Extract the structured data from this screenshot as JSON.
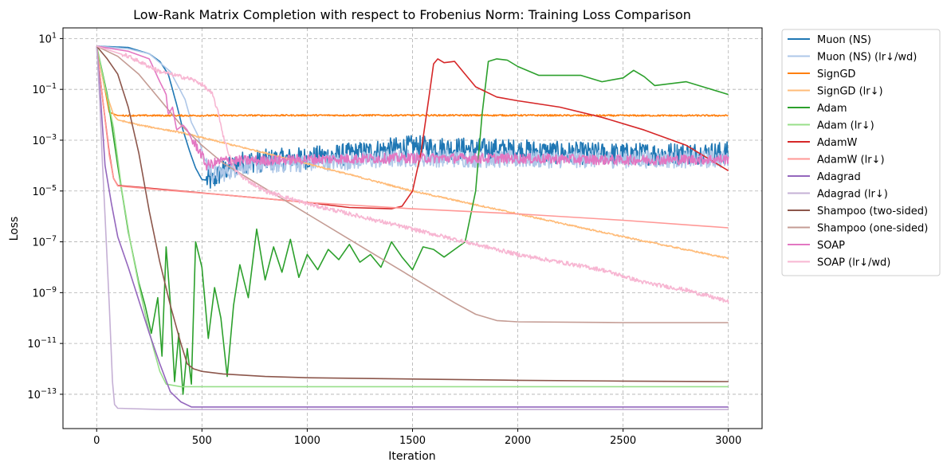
{
  "chart_data": {
    "type": "line",
    "title": "Low-Rank Matrix Completion with respect to Frobenius Norm: Training Loss Comparison",
    "xlabel": "Iteration",
    "ylabel": "Loss",
    "xlim": [
      -160,
      3160
    ],
    "ylim_log10": [
      -14.35,
      1.42
    ],
    "yscale": "log",
    "xticks": [
      0,
      500,
      1000,
      1500,
      2000,
      2500,
      3000
    ],
    "xtick_labels": [
      "0",
      "500",
      "1000",
      "1500",
      "2000",
      "2500",
      "3000"
    ],
    "yticks_exp": [
      1,
      -1,
      -3,
      -5,
      -7,
      -9,
      -11,
      -13
    ],
    "grid": true,
    "legend_position": "outside-right",
    "series": [
      {
        "name": "Muon (NS)",
        "color": "#1f77b4",
        "noise": 0.45,
        "points": [
          [
            0,
            0.7
          ],
          [
            150,
            0.65
          ],
          [
            250,
            0.4
          ],
          [
            300,
            0.1
          ],
          [
            340,
            -0.4
          ],
          [
            380,
            -1.6
          ],
          [
            410,
            -2.6
          ],
          [
            440,
            -3.4
          ],
          [
            470,
            -4.1
          ],
          [
            500,
            -4.55
          ],
          [
            550,
            -4.6
          ],
          [
            600,
            -4.2
          ],
          [
            700,
            -3.85
          ],
          [
            800,
            -3.8
          ],
          [
            1000,
            -3.7
          ],
          [
            1200,
            -3.55
          ],
          [
            1400,
            -3.35
          ],
          [
            1500,
            -3.25
          ],
          [
            1600,
            -3.3
          ],
          [
            1800,
            -3.35
          ],
          [
            2000,
            -3.4
          ],
          [
            2200,
            -3.5
          ],
          [
            2500,
            -3.55
          ],
          [
            3000,
            -3.5
          ]
        ]
      },
      {
        "name": "Muon (NS) (lr↓/wd)",
        "color": "#aec7e8",
        "noise": 0.35,
        "points": [
          [
            0,
            0.7
          ],
          [
            150,
            0.6
          ],
          [
            250,
            0.4
          ],
          [
            350,
            -0.3
          ],
          [
            420,
            -1.4
          ],
          [
            450,
            -2.3
          ],
          [
            480,
            -2.8
          ],
          [
            510,
            -3.7
          ],
          [
            550,
            -4.35
          ],
          [
            600,
            -4.3
          ],
          [
            700,
            -4.0
          ],
          [
            1000,
            -3.9
          ],
          [
            1500,
            -3.7
          ],
          [
            2000,
            -3.75
          ],
          [
            2500,
            -3.75
          ],
          [
            3000,
            -3.75
          ]
        ]
      },
      {
        "name": "SignGD",
        "color": "#ff7f0e",
        "noise": 0.03,
        "points": [
          [
            0,
            0.7
          ],
          [
            30,
            -0.6
          ],
          [
            60,
            -1.9
          ],
          [
            100,
            -2.03
          ],
          [
            500,
            -2.03
          ],
          [
            1000,
            -2.02
          ],
          [
            1500,
            -2.02
          ],
          [
            2000,
            -2.02
          ],
          [
            2500,
            -2.03
          ],
          [
            3000,
            -2.03
          ]
        ]
      },
      {
        "name": "SignGD (lr↓)",
        "color": "#ffbb78",
        "noise": 0.03,
        "points": [
          [
            0,
            0.7
          ],
          [
            40,
            -1.0
          ],
          [
            80,
            -2.0
          ],
          [
            100,
            -2.2
          ],
          [
            200,
            -2.4
          ],
          [
            400,
            -2.7
          ],
          [
            800,
            -3.5
          ],
          [
            1200,
            -4.35
          ],
          [
            1500,
            -5.0
          ],
          [
            2000,
            -5.9
          ],
          [
            2500,
            -6.8
          ],
          [
            3000,
            -7.65
          ]
        ]
      },
      {
        "name": "Adam",
        "color": "#2ca02c",
        "noise": 0.0,
        "points": [
          [
            0,
            0.7
          ],
          [
            50,
            -1.2
          ],
          [
            100,
            -4.0
          ],
          [
            150,
            -6.6
          ],
          [
            200,
            -8.6
          ],
          [
            230,
            -9.5
          ],
          [
            260,
            -10.6
          ],
          [
            290,
            -9.2
          ],
          [
            310,
            -11.5
          ],
          [
            330,
            -7.2
          ],
          [
            350,
            -9.4
          ],
          [
            370,
            -12.5
          ],
          [
            390,
            -10.6
          ],
          [
            410,
            -13.0
          ],
          [
            430,
            -11.2
          ],
          [
            450,
            -12.6
          ],
          [
            470,
            -7.0
          ],
          [
            500,
            -8.0
          ],
          [
            530,
            -10.8
          ],
          [
            560,
            -8.8
          ],
          [
            590,
            -10.0
          ],
          [
            620,
            -12.3
          ],
          [
            650,
            -9.5
          ],
          [
            680,
            -7.9
          ],
          [
            720,
            -9.2
          ],
          [
            760,
            -6.5
          ],
          [
            800,
            -8.5
          ],
          [
            840,
            -7.2
          ],
          [
            880,
            -8.2
          ],
          [
            920,
            -6.9
          ],
          [
            960,
            -8.4
          ],
          [
            1000,
            -7.5
          ],
          [
            1050,
            -8.1
          ],
          [
            1100,
            -7.3
          ],
          [
            1150,
            -7.7
          ],
          [
            1200,
            -7.1
          ],
          [
            1250,
            -7.8
          ],
          [
            1300,
            -7.5
          ],
          [
            1350,
            -8.0
          ],
          [
            1400,
            -7.0
          ],
          [
            1450,
            -7.6
          ],
          [
            1500,
            -8.1
          ],
          [
            1550,
            -7.2
          ],
          [
            1600,
            -7.3
          ],
          [
            1650,
            -7.6
          ],
          [
            1700,
            -7.3
          ],
          [
            1750,
            -7.0
          ],
          [
            1800,
            -5.0
          ],
          [
            1830,
            -2.0
          ],
          [
            1860,
            0.1
          ],
          [
            1900,
            0.2
          ],
          [
            1950,
            0.15
          ],
          [
            2000,
            -0.1
          ],
          [
            2100,
            -0.45
          ],
          [
            2200,
            -0.45
          ],
          [
            2300,
            -0.45
          ],
          [
            2400,
            -0.7
          ],
          [
            2500,
            -0.55
          ],
          [
            2550,
            -0.25
          ],
          [
            2600,
            -0.5
          ],
          [
            2650,
            -0.85
          ],
          [
            2700,
            -0.8
          ],
          [
            2800,
            -0.7
          ],
          [
            2900,
            -0.95
          ],
          [
            3000,
            -1.2
          ]
        ]
      },
      {
        "name": "Adam (lr↓)",
        "color": "#98df8a",
        "noise": 0.0,
        "points": [
          [
            0,
            0.7
          ],
          [
            80,
            -2.5
          ],
          [
            120,
            -5.0
          ],
          [
            160,
            -7.0
          ],
          [
            200,
            -8.7
          ],
          [
            240,
            -10.2
          ],
          [
            270,
            -11.2
          ],
          [
            300,
            -12.1
          ],
          [
            330,
            -12.6
          ],
          [
            400,
            -12.7
          ],
          [
            500,
            -12.7
          ],
          [
            1000,
            -12.7
          ],
          [
            2000,
            -12.7
          ],
          [
            3000,
            -12.7
          ]
        ]
      },
      {
        "name": "AdamW",
        "color": "#d62728",
        "noise": 0.0,
        "points": [
          [
            0,
            0.7
          ],
          [
            30,
            -1.5
          ],
          [
            60,
            -3.5
          ],
          [
            80,
            -4.5
          ],
          [
            100,
            -4.78
          ],
          [
            200,
            -4.85
          ],
          [
            400,
            -5.0
          ],
          [
            600,
            -5.15
          ],
          [
            800,
            -5.3
          ],
          [
            1000,
            -5.45
          ],
          [
            1200,
            -5.65
          ],
          [
            1400,
            -5.7
          ],
          [
            1450,
            -5.6
          ],
          [
            1500,
            -5.0
          ],
          [
            1540,
            -3.5
          ],
          [
            1580,
            -1.2
          ],
          [
            1600,
            0.0
          ],
          [
            1620,
            0.2
          ],
          [
            1650,
            0.05
          ],
          [
            1700,
            0.1
          ],
          [
            1750,
            -0.4
          ],
          [
            1800,
            -0.9
          ],
          [
            1900,
            -1.3
          ],
          [
            2000,
            -1.45
          ],
          [
            2200,
            -1.7
          ],
          [
            2400,
            -2.1
          ],
          [
            2600,
            -2.6
          ],
          [
            2800,
            -3.2
          ],
          [
            3000,
            -4.2
          ]
        ]
      },
      {
        "name": "AdamW (lr↓)",
        "color": "#ff9896",
        "noise": 0.0,
        "points": [
          [
            0,
            0.7
          ],
          [
            30,
            -1.5
          ],
          [
            60,
            -3.6
          ],
          [
            80,
            -4.5
          ],
          [
            100,
            -4.8
          ],
          [
            300,
            -4.95
          ],
          [
            600,
            -5.15
          ],
          [
            1000,
            -5.45
          ],
          [
            1500,
            -5.7
          ],
          [
            2000,
            -5.9
          ],
          [
            2500,
            -6.15
          ],
          [
            3000,
            -6.45
          ]
        ]
      },
      {
        "name": "Adagrad",
        "color": "#9467bd",
        "noise": 0.0,
        "points": [
          [
            0,
            0.7
          ],
          [
            20,
            -1.5
          ],
          [
            40,
            -4.0
          ],
          [
            70,
            -5.5
          ],
          [
            100,
            -6.8
          ],
          [
            150,
            -8.0
          ],
          [
            200,
            -9.3
          ],
          [
            250,
            -10.6
          ],
          [
            300,
            -11.8
          ],
          [
            350,
            -12.9
          ],
          [
            400,
            -13.3
          ],
          [
            450,
            -13.5
          ],
          [
            600,
            -13.5
          ],
          [
            1000,
            -13.5
          ],
          [
            2000,
            -13.5
          ],
          [
            3000,
            -13.5
          ]
        ]
      },
      {
        "name": "Adagrad (lr↓)",
        "color": "#c5b0d5",
        "noise": 0.0,
        "points": [
          [
            0,
            0.7
          ],
          [
            15,
            -1.5
          ],
          [
            25,
            -3.5
          ],
          [
            40,
            -6.0
          ],
          [
            60,
            -9.5
          ],
          [
            75,
            -12.5
          ],
          [
            85,
            -13.4
          ],
          [
            100,
            -13.55
          ],
          [
            300,
            -13.6
          ],
          [
            1000,
            -13.6
          ],
          [
            2000,
            -13.6
          ],
          [
            3000,
            -13.6
          ]
        ]
      },
      {
        "name": "Shampoo (two-sided)",
        "color": "#8c564b",
        "noise": 0.0,
        "points": [
          [
            0,
            0.7
          ],
          [
            50,
            0.2
          ],
          [
            100,
            -0.4
          ],
          [
            150,
            -1.7
          ],
          [
            200,
            -3.5
          ],
          [
            250,
            -5.8
          ],
          [
            300,
            -7.8
          ],
          [
            350,
            -9.5
          ],
          [
            400,
            -11.0
          ],
          [
            430,
            -11.8
          ],
          [
            460,
            -12.0
          ],
          [
            500,
            -12.1
          ],
          [
            600,
            -12.2
          ],
          [
            800,
            -12.3
          ],
          [
            1000,
            -12.35
          ],
          [
            1500,
            -12.4
          ],
          [
            2000,
            -12.45
          ],
          [
            2500,
            -12.48
          ],
          [
            3000,
            -12.5
          ]
        ]
      },
      {
        "name": "Shampoo (one-sided)",
        "color": "#c49c94",
        "noise": 0.0,
        "points": [
          [
            0,
            0.7
          ],
          [
            100,
            0.3
          ],
          [
            200,
            -0.4
          ],
          [
            300,
            -1.4
          ],
          [
            400,
            -2.4
          ],
          [
            500,
            -3.2
          ],
          [
            600,
            -3.9
          ],
          [
            800,
            -4.9
          ],
          [
            1000,
            -5.9
          ],
          [
            1200,
            -6.9
          ],
          [
            1400,
            -7.9
          ],
          [
            1600,
            -8.9
          ],
          [
            1700,
            -9.4
          ],
          [
            1800,
            -9.85
          ],
          [
            1900,
            -10.1
          ],
          [
            2000,
            -10.15
          ],
          [
            2500,
            -10.18
          ],
          [
            3000,
            -10.18
          ]
        ]
      },
      {
        "name": "SOAP",
        "color": "#e377c2",
        "noise": 0.2,
        "points": [
          [
            0,
            0.7
          ],
          [
            150,
            0.5
          ],
          [
            250,
            0.2
          ],
          [
            300,
            -0.7
          ],
          [
            330,
            -1.2
          ],
          [
            340,
            -2.0
          ],
          [
            360,
            -1.7
          ],
          [
            380,
            -2.6
          ],
          [
            410,
            -2.4
          ],
          [
            430,
            -2.6
          ],
          [
            460,
            -3.1
          ],
          [
            480,
            -3.3
          ],
          [
            500,
            -3.6
          ],
          [
            520,
            -4.0
          ],
          [
            600,
            -3.8
          ],
          [
            800,
            -3.8
          ],
          [
            1000,
            -3.75
          ],
          [
            1500,
            -3.7
          ],
          [
            2000,
            -3.72
          ],
          [
            2500,
            -3.78
          ],
          [
            3000,
            -3.75
          ]
        ]
      },
      {
        "name": "SOAP (lr↓/wd)",
        "color": "#f7b6d2",
        "noise": 0.08,
        "points": [
          [
            0,
            0.7
          ],
          [
            150,
            0.3
          ],
          [
            300,
            -0.3
          ],
          [
            400,
            -0.5
          ],
          [
            450,
            -0.6
          ],
          [
            500,
            -0.8
          ],
          [
            550,
            -1.2
          ],
          [
            580,
            -2.0
          ],
          [
            600,
            -2.8
          ],
          [
            630,
            -3.6
          ],
          [
            660,
            -4.2
          ],
          [
            700,
            -4.5
          ],
          [
            800,
            -5.0
          ],
          [
            1000,
            -5.5
          ],
          [
            1200,
            -5.9
          ],
          [
            1400,
            -6.3
          ],
          [
            1600,
            -6.7
          ],
          [
            1800,
            -7.1
          ],
          [
            2000,
            -7.5
          ],
          [
            2200,
            -7.8
          ],
          [
            2400,
            -8.1
          ],
          [
            2600,
            -8.6
          ],
          [
            2800,
            -8.9
          ],
          [
            3000,
            -9.35
          ]
        ]
      }
    ]
  }
}
